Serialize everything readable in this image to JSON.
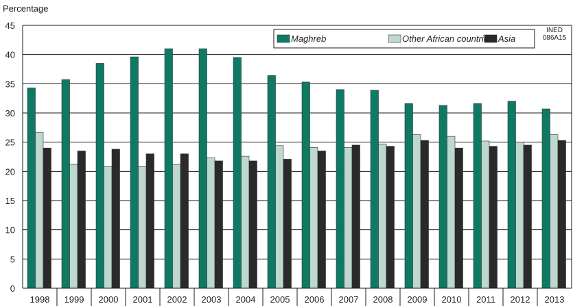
{
  "chart_data": {
    "type": "bar",
    "ylabel": "Percentage",
    "xlabel": "",
    "title": "",
    "ylim": [
      0,
      45
    ],
    "yticks": [
      0,
      5,
      10,
      15,
      20,
      25,
      30,
      35,
      40,
      45
    ],
    "grid": "horizontal",
    "legend_position": "top-right",
    "note_lines": [
      "INED",
      "086A15"
    ],
    "categories": [
      "1998",
      "1999",
      "2000",
      "2001",
      "2002",
      "2003",
      "2004",
      "2005",
      "2006",
      "2007",
      "2008",
      "2009",
      "2010",
      "2011",
      "2012",
      "2013"
    ],
    "series": [
      {
        "name": "Maghreb",
        "color": "#0f7a64",
        "values": [
          34.3,
          35.7,
          38.5,
          39.6,
          41.0,
          41.0,
          39.5,
          36.4,
          35.3,
          34.0,
          33.9,
          31.6,
          31.3,
          31.6,
          32.0,
          30.7
        ]
      },
      {
        "name": "Other African countries",
        "color": "#bcd8cf",
        "values": [
          26.7,
          21.2,
          20.8,
          20.8,
          21.2,
          22.3,
          22.6,
          24.4,
          24.1,
          24.1,
          24.7,
          26.3,
          26.0,
          25.2,
          25.0,
          26.3
        ]
      },
      {
        "name": "Asia",
        "color": "#2a2a2a",
        "values": [
          24.0,
          23.5,
          23.8,
          23.0,
          23.0,
          21.8,
          21.8,
          22.1,
          23.5,
          24.5,
          24.3,
          25.3,
          24.0,
          24.3,
          24.5,
          25.3
        ]
      }
    ]
  }
}
